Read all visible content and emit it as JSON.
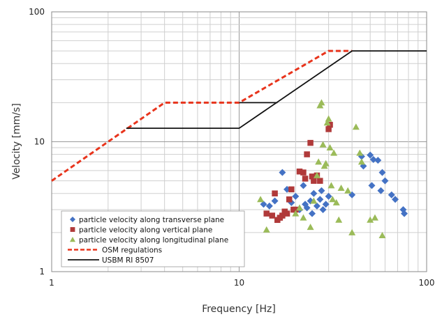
{
  "chart_data": {
    "type": "scatter",
    "x_scale": "log",
    "y_scale": "log",
    "xlabel": "Frequency [Hz]",
    "ylabel": "Velocity [mm/s]",
    "xlim": [
      1,
      100
    ],
    "ylim": [
      1,
      100
    ],
    "x_tick_labels": [
      "1",
      "10",
      "100"
    ],
    "y_tick_labels": [
      "1",
      "10",
      "100"
    ],
    "grid": true,
    "legend_position": "bottom-left",
    "series": [
      {
        "name": "particle velocity along transverse plane",
        "marker": "diamond",
        "color": "#4472C4",
        "points": [
          [
            13.5,
            3.3
          ],
          [
            14.5,
            3.2
          ],
          [
            15.5,
            3.5
          ],
          [
            17,
            5.8
          ],
          [
            18,
            4.3
          ],
          [
            19,
            3.4
          ],
          [
            20,
            3.8
          ],
          [
            21,
            3.0
          ],
          [
            22,
            4.6
          ],
          [
            22.5,
            3.3
          ],
          [
            23,
            3.1
          ],
          [
            24,
            3.5
          ],
          [
            24.5,
            2.8
          ],
          [
            25,
            4.0
          ],
          [
            26,
            3.2
          ],
          [
            27,
            3.6
          ],
          [
            27.5,
            4.2
          ],
          [
            28,
            3.0
          ],
          [
            29,
            3.3
          ],
          [
            30,
            3.8
          ],
          [
            40,
            3.9
          ],
          [
            45,
            7.7
          ],
          [
            46,
            6.5
          ],
          [
            50,
            7.9
          ],
          [
            51,
            4.6
          ],
          [
            52,
            7.3
          ],
          [
            55,
            7.2
          ],
          [
            57,
            4.2
          ],
          [
            58,
            5.8
          ],
          [
            60,
            5.0
          ],
          [
            65,
            3.9
          ],
          [
            68,
            3.6
          ],
          [
            75,
            3.0
          ],
          [
            76,
            2.8
          ]
        ]
      },
      {
        "name": "particle velocity along vertical plane",
        "marker": "square",
        "color": "#B03A3A",
        "points": [
          [
            14,
            2.8
          ],
          [
            15,
            2.7
          ],
          [
            15.5,
            4.0
          ],
          [
            16,
            2.5
          ],
          [
            16.5,
            2.6
          ],
          [
            17,
            2.7
          ],
          [
            17.5,
            2.9
          ],
          [
            18,
            2.8
          ],
          [
            18.5,
            3.6
          ],
          [
            19,
            4.3
          ],
          [
            19.5,
            3.0
          ],
          [
            20,
            3.0
          ],
          [
            21,
            5.9
          ],
          [
            22,
            5.8
          ],
          [
            22.5,
            5.2
          ],
          [
            23,
            8.0
          ],
          [
            24,
            9.8
          ],
          [
            24.5,
            5.4
          ],
          [
            25,
            5.0
          ],
          [
            26,
            5.5
          ],
          [
            27,
            5.0
          ],
          [
            30,
            12.5
          ],
          [
            30.5,
            13.5
          ]
        ]
      },
      {
        "name": "particle velocity along longitudinal plane",
        "marker": "triangle",
        "color": "#9BBB59",
        "points": [
          [
            13,
            3.6
          ],
          [
            14,
            2.1
          ],
          [
            20,
            2.8
          ],
          [
            21,
            3.1
          ],
          [
            22,
            2.6
          ],
          [
            24,
            2.2
          ],
          [
            25,
            3.5
          ],
          [
            26,
            5.5
          ],
          [
            26.5,
            7.0
          ],
          [
            27,
            19.0
          ],
          [
            27.5,
            20.0
          ],
          [
            28,
            9.5
          ],
          [
            28.5,
            6.5
          ],
          [
            29,
            6.8
          ],
          [
            29.5,
            14.0
          ],
          [
            30,
            15.0
          ],
          [
            30.5,
            9.0
          ],
          [
            31,
            4.6
          ],
          [
            31.5,
            3.6
          ],
          [
            32,
            8.2
          ],
          [
            33,
            3.4
          ],
          [
            34,
            2.5
          ],
          [
            35,
            4.4
          ],
          [
            38,
            4.2
          ],
          [
            40,
            2.0
          ],
          [
            42,
            13.0
          ],
          [
            44,
            8.2
          ],
          [
            45,
            7.0
          ],
          [
            50,
            2.5
          ],
          [
            53,
            2.6
          ],
          [
            58,
            1.9
          ]
        ]
      },
      {
        "name": "OSM regulations",
        "marker": "none",
        "line": "dashed",
        "color": "#E8341C",
        "points": [
          [
            1,
            5
          ],
          [
            4,
            20
          ],
          [
            10,
            20
          ],
          [
            30,
            50
          ],
          [
            40,
            50
          ]
        ]
      },
      {
        "name": "USBM RI 8507",
        "marker": "none",
        "line": "solid",
        "color": "#111111",
        "points": [
          [
            2.5,
            12.7
          ],
          [
            10,
            12.7
          ],
          [
            40,
            50
          ],
          [
            100,
            50
          ]
        ]
      },
      {
        "name": "",
        "marker": "none",
        "line": "solid",
        "color": "#111111",
        "points": [
          [
            10,
            20
          ],
          [
            16,
            20
          ]
        ]
      }
    ]
  }
}
